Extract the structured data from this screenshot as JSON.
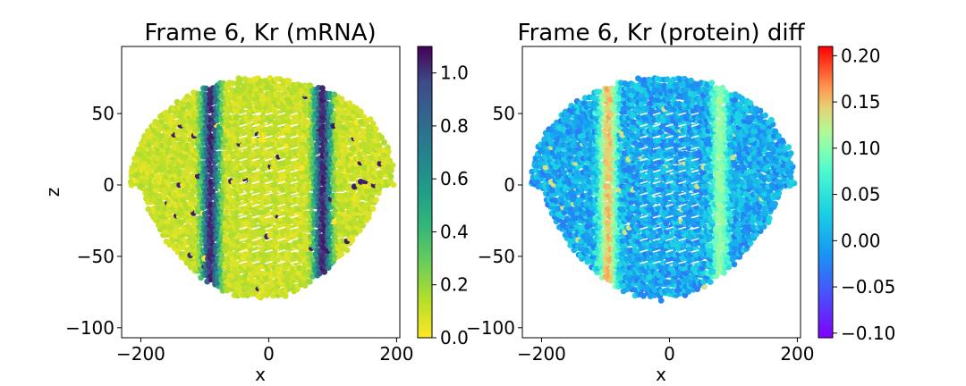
{
  "chart_data": [
    {
      "type": "scatter",
      "title": "Frame 6, Kr (mRNA)",
      "xlabel": "x",
      "ylabel": "z",
      "xlim": [
        -230,
        205
      ],
      "ylim": [
        -107,
        97
      ],
      "xticks": [
        -200,
        0,
        200
      ],
      "yticks": [
        -100,
        -50,
        0,
        50
      ],
      "xtick_labels": [
        "−200",
        "0",
        "200"
      ],
      "ytick_labels": [
        "−100",
        "−50",
        "0",
        "50"
      ],
      "colormap": "viridis_r",
      "colorbar": {
        "range": [
          0.0,
          1.1
        ],
        "ticks": [
          0.0,
          0.2,
          0.4,
          0.6,
          0.8,
          1.0
        ],
        "tick_labels": [
          "0.0",
          "0.2",
          "0.4",
          "0.6",
          "0.8",
          "1.0"
        ]
      },
      "stripes": [
        {
          "center": -90,
          "width": 22,
          "value": 1.05
        },
        {
          "center": 85,
          "width": 22,
          "value": 1.05
        }
      ],
      "background_value": 0.1,
      "grid": false
    },
    {
      "type": "scatter",
      "title": "Frame 6, Kr (protein) diff",
      "xlabel": "x",
      "ylabel": "",
      "xlim": [
        -230,
        205
      ],
      "ylim": [
        -107,
        97
      ],
      "xticks": [
        -200,
        0,
        200
      ],
      "yticks": [
        -100,
        -50,
        0,
        50
      ],
      "xtick_labels": [
        "−200",
        "0",
        "200"
      ],
      "ytick_labels": [
        "−100",
        "−50",
        "0",
        "50"
      ],
      "colormap": "rainbow",
      "colorbar": {
        "range": [
          -0.105,
          0.21
        ],
        "ticks": [
          -0.1,
          -0.05,
          0.0,
          0.05,
          0.1,
          0.15,
          0.2
        ],
        "tick_labels": [
          "−0.10",
          "−0.05",
          "0.00",
          "0.05",
          "0.10",
          "0.15",
          "0.20"
        ]
      },
      "stripes": [
        {
          "center": -95,
          "width": 22,
          "value": 0.13
        },
        {
          "center": 80,
          "width": 20,
          "value": 0.07
        }
      ],
      "background_value": -0.03,
      "grid": false
    }
  ]
}
